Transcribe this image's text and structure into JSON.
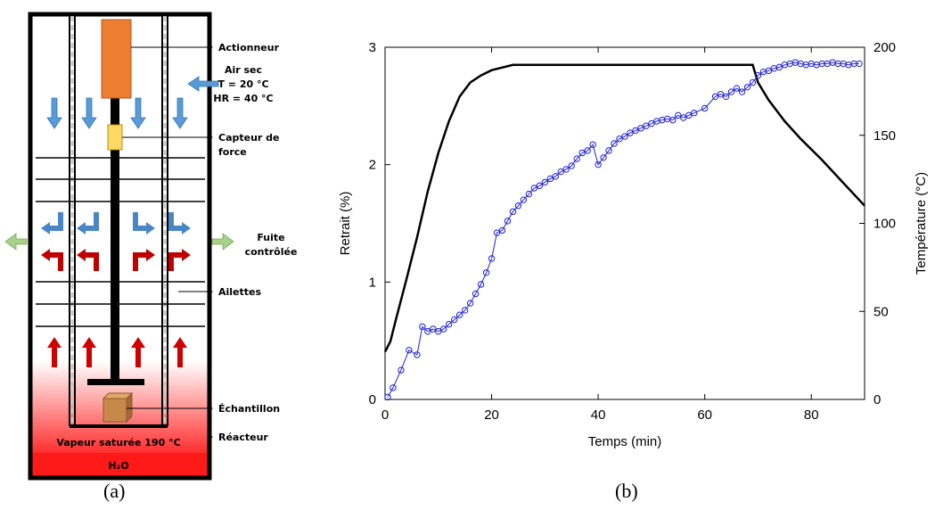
{
  "diagram": {
    "labels": {
      "actuator": "Actionneur",
      "dry_air_1": "Air sec",
      "dry_air_2": "T = 20 °C",
      "dry_air_3": "HR = 40 °C",
      "force_sensor_1": "Capteur de",
      "force_sensor_2": "force",
      "leak_1": "Fuite",
      "leak_2": "contrôlée",
      "fins": "Ailettes",
      "sample": "Échantillon",
      "reactor": "Réacteur",
      "steam": "Vapeur saturée 190 °C",
      "water": "H₂O"
    },
    "colors": {
      "reactor_red": "#ff1a1a",
      "actuator_orange": "#ed7d31",
      "sensor_yellow": "#ffd966",
      "down_arrow_blue": "#5b9bd5",
      "up_arrow_red": "#d00000",
      "leak_green": "#a9d18e",
      "sample_wood": "#c8884a"
    }
  },
  "chart_data": {
    "type": "line",
    "xlabel": "Temps (min)",
    "ylabel": "Retrait (%)",
    "y2label": "Température (°C)",
    "xlim": [
      0,
      90
    ],
    "ylim": [
      0,
      3
    ],
    "y2lim": [
      0,
      200
    ],
    "xticks": [
      "0",
      "20",
      "40",
      "60",
      "80"
    ],
    "yticks": [
      "0",
      "1",
      "2",
      "3"
    ],
    "y2ticks": [
      "0",
      "50",
      "100",
      "150",
      "200"
    ],
    "series": [
      {
        "axis": "right",
        "color": "#000000",
        "marker": "none",
        "x": [
          0,
          1,
          2,
          4,
          6,
          8,
          10,
          12,
          14,
          16,
          18,
          20,
          24,
          30,
          40,
          50,
          60,
          67,
          69,
          70,
          72,
          75,
          78,
          82,
          86,
          90
        ],
        "y": [
          27,
          33,
          45,
          68,
          92,
          118,
          140,
          158,
          172,
          180,
          184,
          187,
          190,
          190,
          190,
          190,
          190,
          190,
          190,
          180,
          170,
          158,
          148,
          136,
          123,
          110
        ]
      },
      {
        "axis": "left",
        "color": "#1f1fd6",
        "marker": "circle",
        "x": [
          0.5,
          1.5,
          3,
          4.5,
          6,
          7,
          8,
          9,
          10,
          11,
          12,
          13,
          14,
          15,
          16,
          17,
          18,
          19,
          20,
          21,
          22,
          23,
          24,
          25,
          26,
          27,
          28,
          29,
          30,
          31,
          32,
          33,
          34,
          35,
          36,
          37,
          38,
          39,
          40,
          41,
          42,
          43,
          44,
          45,
          46,
          47,
          48,
          49,
          50,
          51,
          52,
          53,
          54,
          55,
          56,
          57,
          58,
          60,
          62,
          63,
          64,
          65,
          66,
          67,
          68,
          69,
          70,
          71,
          72,
          73,
          74,
          75,
          76,
          77,
          78,
          79,
          80,
          81,
          82,
          83,
          84,
          85,
          86,
          87,
          88,
          89
        ],
        "y": [
          0.02,
          0.1,
          0.25,
          0.42,
          0.38,
          0.62,
          0.58,
          0.6,
          0.58,
          0.6,
          0.64,
          0.68,
          0.72,
          0.76,
          0.82,
          0.9,
          0.98,
          1.08,
          1.2,
          1.42,
          1.44,
          1.52,
          1.6,
          1.65,
          1.7,
          1.75,
          1.8,
          1.82,
          1.85,
          1.88,
          1.9,
          1.94,
          1.96,
          1.99,
          2.05,
          2.1,
          2.12,
          2.17,
          2.0,
          2.06,
          2.12,
          2.18,
          2.22,
          2.24,
          2.27,
          2.29,
          2.31,
          2.33,
          2.35,
          2.37,
          2.38,
          2.39,
          2.38,
          2.42,
          2.4,
          2.42,
          2.44,
          2.48,
          2.58,
          2.6,
          2.58,
          2.62,
          2.65,
          2.62,
          2.66,
          2.7,
          2.76,
          2.79,
          2.8,
          2.82,
          2.83,
          2.85,
          2.86,
          2.87,
          2.86,
          2.85,
          2.86,
          2.85,
          2.86,
          2.86,
          2.87,
          2.86,
          2.86,
          2.85,
          2.86,
          2.86
        ]
      }
    ]
  },
  "captions": {
    "a": "(a)",
    "b": "(b)"
  }
}
